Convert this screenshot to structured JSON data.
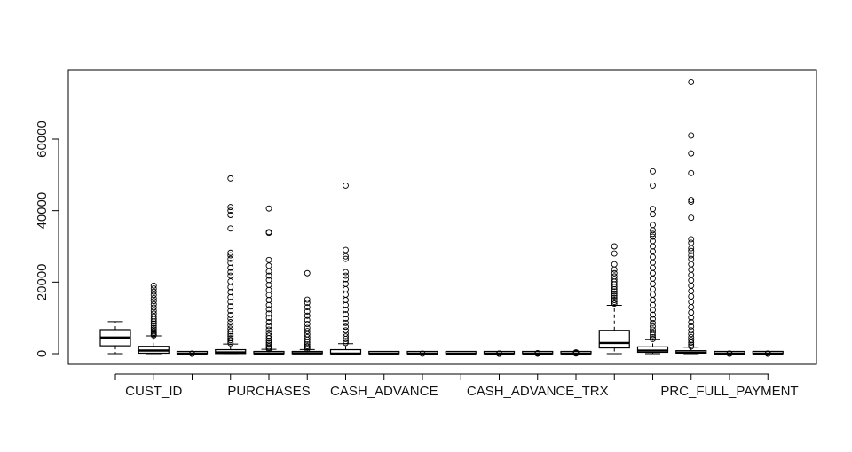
{
  "chart_data": {
    "type": "boxplot",
    "title": "",
    "xlabel": "",
    "ylabel": "",
    "ylim": [
      -3000,
      79000
    ],
    "y_ticks": [
      0,
      20000,
      40000,
      60000
    ],
    "y_tick_labels": [
      "0",
      "20000",
      "40000",
      "60000"
    ],
    "grid": false,
    "x_tick_labels": [
      {
        "index": 1,
        "label": "CUST_ID"
      },
      {
        "index": 4,
        "label": "PURCHASES"
      },
      {
        "index": 7,
        "label": "CASH_ADVANCE"
      },
      {
        "index": 11,
        "label": "CASH_ADVANCE_TRX"
      },
      {
        "index": 16,
        "label": "PRC_FULL_PAYMENT"
      }
    ],
    "boxes": [
      {
        "q1": 2200,
        "median": 4500,
        "q3": 6700,
        "whisker_low": 0,
        "whisker_high": 8950,
        "outliers": []
      },
      {
        "q1": 130,
        "median": 870,
        "q3": 2050,
        "whisker_low": 0,
        "whisker_high": 4950,
        "outliers": [
          5100,
          5400,
          5800,
          6200,
          6700,
          7200,
          7800,
          8400,
          9000,
          9700,
          10400,
          11200,
          12000,
          12900,
          13800,
          14700,
          15500,
          16400,
          17300,
          18200,
          19000
        ]
      },
      {
        "q1": 0,
        "median": 0.9,
        "q3": 1,
        "whisker_low": 0,
        "whisker_high": 1,
        "outliers": [
          0.1,
          0.3
        ]
      },
      {
        "q1": 40,
        "median": 360,
        "q3": 1110,
        "whisker_low": 0,
        "whisker_high": 2700,
        "outliers": [
          2900,
          3300,
          3800,
          4300,
          4900,
          5500,
          6200,
          7000,
          7900,
          8800,
          9800,
          10800,
          12000,
          13200,
          14500,
          15800,
          17200,
          18600,
          20200,
          21800,
          22800,
          24000,
          25400,
          26500,
          27500,
          28200,
          35000,
          38800,
          40000,
          41000,
          49000
        ]
      },
      {
        "q1": 0,
        "median": 40,
        "q3": 470,
        "whisker_low": 0,
        "whisker_high": 1200,
        "outliers": [
          1300,
          1600,
          2000,
          2500,
          3000,
          3600,
          4300,
          5000,
          5800,
          6700,
          7700,
          8800,
          10000,
          11200,
          12400,
          13600,
          15000,
          16400,
          17800,
          19200,
          20600,
          21800,
          23000,
          24600,
          26200,
          33800,
          34000,
          40600
        ]
      },
      {
        "q1": 0,
        "median": 90,
        "q3": 470,
        "whisker_low": 0,
        "whisker_high": 1150,
        "outliers": [
          1300,
          1700,
          2100,
          2600,
          3200,
          3900,
          4600,
          5400,
          6300,
          7200,
          8300,
          9400,
          10600,
          11800,
          13000,
          14200,
          15100,
          22500
        ]
      },
      {
        "q1": 0,
        "median": 0,
        "q3": 1110,
        "whisker_low": 0,
        "whisker_high": 2780,
        "outliers": [
          3000,
          3500,
          4100,
          4800,
          5600,
          6500,
          7500,
          8600,
          9800,
          11000,
          12300,
          13600,
          15000,
          16500,
          18000,
          19500,
          20800,
          21800,
          22800,
          26500,
          27200,
          29000,
          47000
        ]
      },
      {
        "q1": 0,
        "median": 0.5,
        "q3": 0.9,
        "whisker_low": 0,
        "whisker_high": 1,
        "outliers": []
      },
      {
        "q1": 0,
        "median": 0.1,
        "q3": 0.3,
        "whisker_low": 0,
        "whisker_high": 0.75,
        "outliers": [
          0.9
        ]
      },
      {
        "q1": 0,
        "median": 0.1,
        "q3": 0.75,
        "whisker_low": 0,
        "whisker_high": 1,
        "outliers": []
      },
      {
        "q1": 0,
        "median": 0,
        "q3": 0.15,
        "whisker_low": 0,
        "whisker_high": 0.37,
        "outliers": [
          0.5,
          0.7,
          1.0,
          1.5
        ]
      },
      {
        "q1": 0,
        "median": 0,
        "q3": 4,
        "whisker_low": 0,
        "whisker_high": 10,
        "outliers": [
          12,
          20,
          40,
          80,
          123
        ]
      },
      {
        "q1": 1,
        "median": 7,
        "q3": 17,
        "whisker_low": 0,
        "whisker_high": 41,
        "outliers": [
          50,
          80,
          120,
          200,
          358
        ]
      },
      {
        "q1": 1600,
        "median": 3000,
        "q3": 6500,
        "whisker_low": 0,
        "whisker_high": 13500,
        "outliers": [
          14000,
          14500,
          15000,
          15600,
          16200,
          16800,
          17400,
          18000,
          18700,
          19400,
          20100,
          20800,
          21600,
          22500,
          23500,
          25000,
          28000,
          30000
        ]
      },
      {
        "q1": 380,
        "median": 860,
        "q3": 1900,
        "whisker_low": 0,
        "whisker_high": 3900,
        "outliers": [
          4100,
          4600,
          5200,
          5900,
          6700,
          7600,
          8600,
          9700,
          10900,
          12200,
          13600,
          15000,
          16500,
          18000,
          19500,
          21000,
          22500,
          24000,
          25500,
          27000,
          28600,
          30000,
          31500,
          32700,
          33500,
          34500,
          36000,
          39000,
          40500,
          47000,
          51000
        ]
      },
      {
        "q1": 170,
        "median": 300,
        "q3": 830,
        "whisker_low": 0,
        "whisker_high": 1800,
        "outliers": [
          2000,
          2500,
          3100,
          3800,
          4600,
          5500,
          6500,
          7600,
          8800,
          10100,
          11500,
          13000,
          14500,
          16000,
          17500,
          19000,
          20500,
          22000,
          23500,
          25000,
          26500,
          27500,
          28700,
          29500,
          31000,
          32000,
          38000,
          42500,
          43000,
          50500,
          56000,
          61000,
          76000
        ]
      },
      {
        "q1": 0,
        "median": 0,
        "q3": 0.14,
        "whisker_low": 0,
        "whisker_high": 0.36,
        "outliers": [
          0.5,
          0.7,
          0.9,
          1.0
        ]
      },
      {
        "q1": 12,
        "median": 12,
        "q3": 12,
        "whisker_low": 12,
        "whisker_high": 12,
        "outliers": [
          6,
          8,
          9,
          10,
          11
        ]
      }
    ]
  }
}
